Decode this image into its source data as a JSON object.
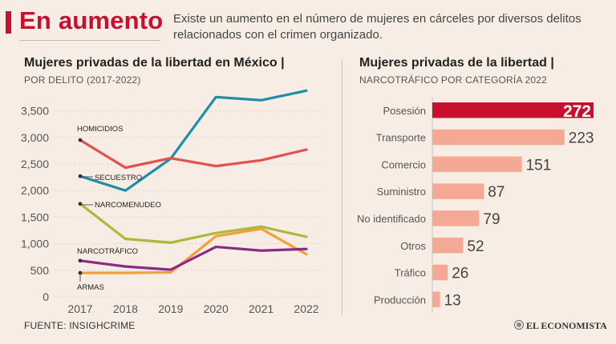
{
  "header": {
    "title": "En aumento",
    "description": "Existe un aumento en el número de mujeres en cárceles por diversos delitos relacionados con el crimen organizado.",
    "accent_color": "#c8102e"
  },
  "footer": {
    "source": "FUENTE: INSIGHCRIME",
    "logo_text": "EL ECONOMISTA"
  },
  "chart_data": [
    {
      "type": "line",
      "title": "Mujeres privadas de la libertad en México |",
      "subtitle": "POR DELITO (2017-2022)",
      "x": [
        "2017",
        "2018",
        "2019",
        "2020",
        "2021",
        "2022"
      ],
      "ylim": [
        0,
        3900
      ],
      "y_ticks": [
        {
          "value": 0,
          "label": "0"
        },
        {
          "value": 500,
          "label": "500"
        },
        {
          "value": 1000,
          "label": "1,000"
        },
        {
          "value": 1500,
          "label": "1,500"
        },
        {
          "value": 2000,
          "label": "2,000"
        },
        {
          "value": 2500,
          "label": "2,500"
        },
        {
          "value": 3000,
          "label": "3,000"
        },
        {
          "value": 3500,
          "label": "3,500"
        }
      ],
      "series": [
        {
          "name": "SECUESTRO",
          "color": "#1f8fa6",
          "values": [
            2270,
            2000,
            2600,
            3760,
            3700,
            3880
          ]
        },
        {
          "name": "HOMICIDIOS",
          "color": "#e0524e",
          "values": [
            2950,
            2430,
            2610,
            2460,
            2570,
            2770
          ]
        },
        {
          "name": "NARCOMENUDEO",
          "color": "#a9ba3c",
          "values": [
            1750,
            1090,
            1020,
            1200,
            1320,
            1130
          ]
        },
        {
          "name": "ARMAS",
          "color": "#f2a03a",
          "values": [
            450,
            450,
            460,
            1140,
            1280,
            800
          ]
        },
        {
          "name": "NARCOTRÁFICO",
          "color": "#8b2b85",
          "values": [
            680,
            570,
            510,
            940,
            870,
            900
          ]
        }
      ]
    },
    {
      "type": "bar",
      "orientation": "horizontal",
      "title": "Mujeres privadas de la libertad |",
      "subtitle": "NARCOTRÁFICO POR CATEGORÍA 2022",
      "categories": [
        "Posesión",
        "Transporte",
        "Comercio",
        "Suministro",
        "No identificado",
        "Otros",
        "Tráfico",
        "Producción"
      ],
      "values": [
        272,
        223,
        151,
        87,
        79,
        52,
        26,
        13
      ],
      "value_labels": [
        "272",
        "223",
        "151",
        "87",
        "79",
        "52",
        "26",
        "13"
      ],
      "highlight_color": "#c8102e",
      "bar_color": "#f3a994",
      "xlim": [
        0,
        272
      ]
    }
  ]
}
